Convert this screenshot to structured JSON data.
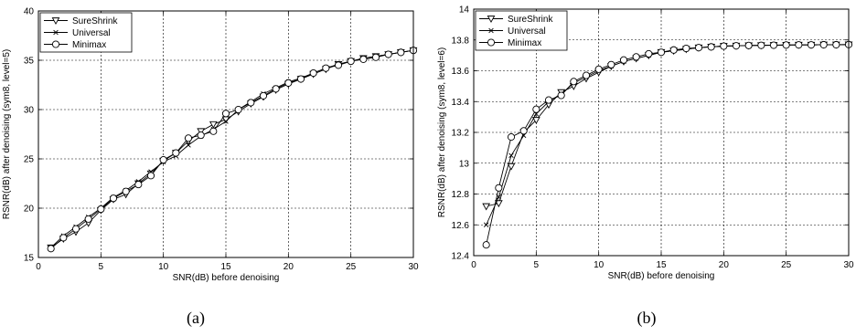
{
  "chart_data": [
    {
      "type": "line",
      "caption": "(a)",
      "xlabel": "SNR(dB) before denoising",
      "ylabel": "RSNR(dB) after denoising (sym8, level=5)",
      "xlim": [
        0,
        30
      ],
      "ylim": [
        15,
        40
      ],
      "xticks": [
        0,
        5,
        10,
        15,
        20,
        25,
        30
      ],
      "yticks": [
        15,
        20,
        25,
        30,
        35,
        40
      ],
      "grid": true,
      "legend_position": "top-left",
      "x": [
        1,
        2,
        3,
        4,
        5,
        6,
        7,
        8,
        9,
        10,
        11,
        12,
        13,
        14,
        15,
        16,
        17,
        18,
        19,
        20,
        21,
        22,
        23,
        24,
        25,
        26,
        27,
        28,
        29,
        30
      ],
      "series": [
        {
          "name": "SureShrink",
          "marker": "triangle-down",
          "values": [
            16.0,
            16.9,
            17.6,
            18.5,
            19.8,
            20.9,
            21.4,
            22.5,
            23.5,
            24.8,
            25.6,
            26.8,
            27.8,
            28.5,
            29.0,
            29.8,
            30.6,
            31.3,
            32.0,
            32.6,
            33.1,
            33.6,
            34.1,
            34.6,
            34.9,
            35.2,
            35.4,
            35.6,
            35.8,
            36.0
          ]
        },
        {
          "name": "Universal",
          "marker": "x",
          "values": [
            16.0,
            17.2,
            18.1,
            19.1,
            20.0,
            21.1,
            21.8,
            22.7,
            23.7,
            24.7,
            25.3,
            26.4,
            27.3,
            28.0,
            28.8,
            30.0,
            30.8,
            31.6,
            32.2,
            32.8,
            33.2,
            33.7,
            34.2,
            34.6,
            34.9,
            35.2,
            35.4,
            35.6,
            35.8,
            36.0
          ]
        },
        {
          "name": "Minimax",
          "marker": "circle",
          "values": [
            15.9,
            17.0,
            17.9,
            18.9,
            19.9,
            21.0,
            21.7,
            22.4,
            23.3,
            24.9,
            25.6,
            27.1,
            27.4,
            27.8,
            29.6,
            30.0,
            30.7,
            31.4,
            32.1,
            32.7,
            33.1,
            33.7,
            34.2,
            34.5,
            34.9,
            35.1,
            35.3,
            35.6,
            35.8,
            36.0
          ]
        }
      ]
    },
    {
      "type": "line",
      "caption": "(b)",
      "xlabel": "SNR(dB) before denoising",
      "ylabel": "RSNR(dB) after denoising (sym8, level=6)",
      "xlim": [
        0,
        30
      ],
      "ylim": [
        12.4,
        14
      ],
      "xticks": [
        0,
        5,
        10,
        15,
        20,
        25,
        30
      ],
      "yticks": [
        12.4,
        12.6,
        12.8,
        13,
        13.2,
        13.4,
        13.6,
        13.8,
        14
      ],
      "ytick_labels": [
        "12.4",
        "12.6",
        "12.8",
        "13",
        "13.2",
        "13.4",
        "13.6",
        "13.8",
        "14"
      ],
      "grid": true,
      "legend_position": "top-left",
      "x": [
        1,
        2,
        3,
        4,
        5,
        6,
        7,
        8,
        9,
        10,
        11,
        12,
        13,
        14,
        15,
        16,
        17,
        18,
        19,
        20,
        21,
        22,
        23,
        24,
        25,
        26,
        27,
        28,
        29,
        30
      ],
      "series": [
        {
          "name": "SureShrink",
          "marker": "triangle-down",
          "values": [
            12.72,
            12.74,
            12.98,
            13.2,
            13.28,
            13.38,
            13.46,
            13.5,
            13.55,
            13.59,
            13.63,
            13.66,
            13.68,
            13.7,
            13.72,
            13.73,
            13.74,
            13.75,
            13.755,
            13.76,
            13.762,
            13.764,
            13.765,
            13.766,
            13.767,
            13.768,
            13.768,
            13.769,
            13.769,
            13.77
          ]
        },
        {
          "name": "Universal",
          "marker": "x",
          "values": [
            12.6,
            12.78,
            13.05,
            13.18,
            13.32,
            13.4,
            13.45,
            13.52,
            13.56,
            13.6,
            13.63,
            13.66,
            13.68,
            13.7,
            13.72,
            13.73,
            13.74,
            13.75,
            13.755,
            13.76,
            13.762,
            13.764,
            13.765,
            13.766,
            13.767,
            13.768,
            13.768,
            13.769,
            13.769,
            13.77
          ]
        },
        {
          "name": "Minimax",
          "marker": "circle",
          "values": [
            12.47,
            12.84,
            13.17,
            13.21,
            13.35,
            13.41,
            13.44,
            13.53,
            13.57,
            13.61,
            13.64,
            13.67,
            13.69,
            13.71,
            13.72,
            13.735,
            13.745,
            13.75,
            13.755,
            13.76,
            13.762,
            13.764,
            13.765,
            13.766,
            13.767,
            13.768,
            13.768,
            13.769,
            13.769,
            13.77
          ]
        }
      ]
    }
  ]
}
